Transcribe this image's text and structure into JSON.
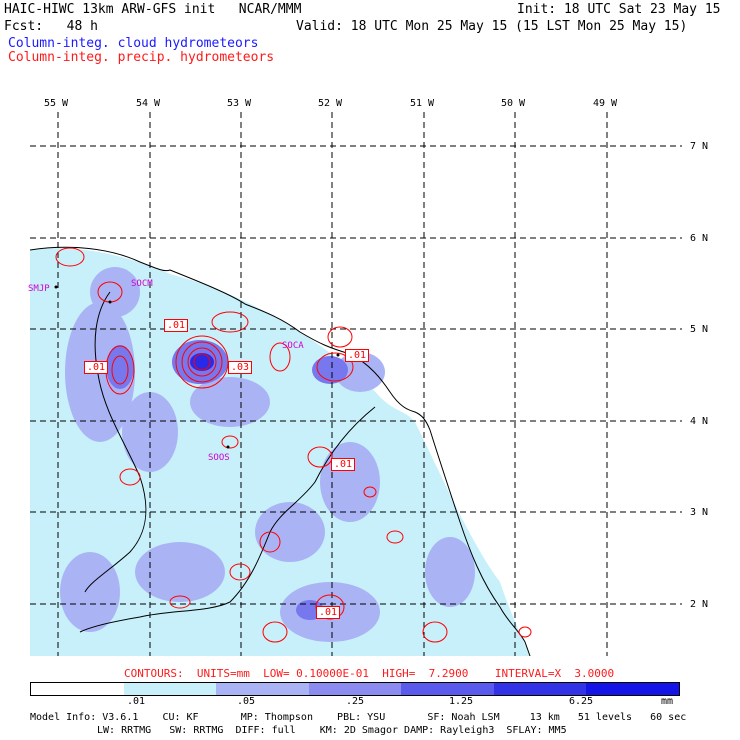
{
  "header": {
    "model_line": "HAIC-HIWC 13km ARW-GFS init   NCAR/MMM",
    "init_line": "Init: 18 UTC Sat 23 May 15",
    "fcst_line": "Fcst:   48 h",
    "valid_line": "Valid: 18 UTC Mon 25 May 15 (15 LST Mon 25 May 15)",
    "field1": "Column-integ. cloud hydrometeors",
    "field2": "Column-integ. precip. hydrometeors"
  },
  "map": {
    "lon_labels": [
      "55 W",
      "54 W",
      "53 W",
      "52 W",
      "51 W",
      "50 W",
      "49 W"
    ],
    "lat_labels": [
      "7 N",
      "6 N",
      "5 N",
      "4 N",
      "3 N",
      "2 N"
    ],
    "stations": [
      "SMJP",
      "SOCM",
      "SOCA",
      "SOOS"
    ],
    "contour_labels": [
      ".01",
      ".01",
      ".03",
      ".01",
      ".01",
      ".01"
    ]
  },
  "contours_line": "CONTOURS:  UNITS=mm  LOW= 0.10000E-01  HIGH=  7.2900    INTERVAL=X  3.0000",
  "colorbar": {
    "colors": [
      "#ffffff",
      "#c8f0fa",
      "#aab4f5",
      "#8c8cf0",
      "#5a5aec",
      "#3232e6",
      "#1414e6"
    ],
    "labels": [
      ".01",
      ".05",
      ".25",
      "1.25",
      "6.25"
    ],
    "units": "mm"
  },
  "footer": {
    "line1": "Model Info: V3.6.1    CU: KF       MP: Thompson    PBL: YSU       SF: Noah LSM     13 km   51 levels   60 sec",
    "line2": "LW: RRTMG   SW: RRTMG  DIFF: full    KM: 2D Smagor DAMP: Rayleigh3  SFLAY: MM5"
  }
}
